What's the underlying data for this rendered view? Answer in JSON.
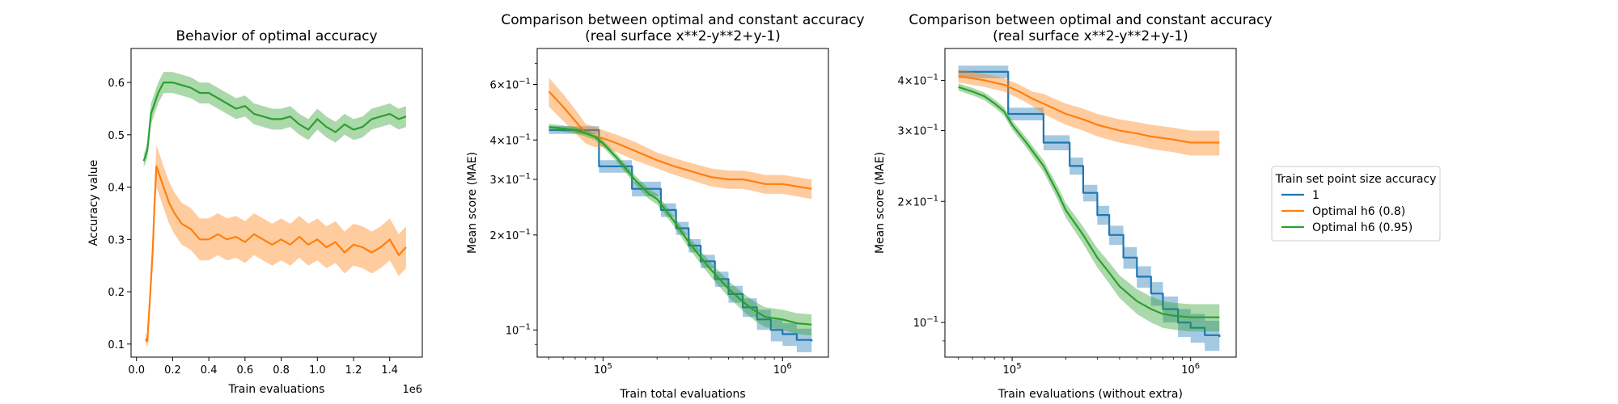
{
  "chart_data": [
    {
      "type": "line",
      "title": "Behavior of optimal accuracy",
      "xlabel": "Train evaluations",
      "ylabel": "Accuracy value",
      "x_offset_label": "1e6",
      "xlim": [
        -0.03,
        1.58
      ],
      "ylim": [
        0.075,
        0.665
      ],
      "xscale": "linear",
      "yscale": "linear",
      "xticks": [
        0.0,
        0.2,
        0.4,
        0.6,
        0.8,
        1.0,
        1.2,
        1.4
      ],
      "xtick_labels": [
        "0.0",
        "0.2",
        "0.4",
        "0.6",
        "0.8",
        "1.0",
        "1.2",
        "1.4"
      ],
      "yticks": [
        0.1,
        0.2,
        0.3,
        0.4,
        0.5,
        0.6
      ],
      "ytick_labels": [
        "0.1",
        "0.2",
        "0.3",
        "0.4",
        "0.5",
        "0.6"
      ],
      "series": [
        {
          "color": "#ff7f0e",
          "x": [
            0.05,
            0.06,
            0.075,
            0.09,
            0.1,
            0.11,
            0.13,
            0.15,
            0.18,
            0.21,
            0.25,
            0.3,
            0.35,
            0.4,
            0.45,
            0.5,
            0.55,
            0.6,
            0.65,
            0.7,
            0.75,
            0.8,
            0.85,
            0.9,
            0.95,
            1.0,
            1.05,
            1.1,
            1.15,
            1.2,
            1.25,
            1.3,
            1.35,
            1.4,
            1.45,
            1.49
          ],
          "y": [
            0.11,
            0.105,
            0.19,
            0.28,
            0.37,
            0.44,
            0.42,
            0.4,
            0.37,
            0.35,
            0.33,
            0.32,
            0.3,
            0.3,
            0.31,
            0.3,
            0.305,
            0.295,
            0.31,
            0.3,
            0.29,
            0.3,
            0.29,
            0.305,
            0.29,
            0.3,
            0.285,
            0.295,
            0.275,
            0.29,
            0.285,
            0.275,
            0.285,
            0.3,
            0.27,
            0.285
          ],
          "band": [
            0.01,
            0.01,
            0.02,
            0.03,
            0.035,
            0.04,
            0.04,
            0.04,
            0.04,
            0.04,
            0.04,
            0.04,
            0.04,
            0.04,
            0.04,
            0.04,
            0.04,
            0.04,
            0.04,
            0.04,
            0.04,
            0.04,
            0.04,
            0.04,
            0.04,
            0.04,
            0.04,
            0.04,
            0.04,
            0.04,
            0.04,
            0.04,
            0.04,
            0.04,
            0.04,
            0.04
          ]
        },
        {
          "color": "#2ca02c",
          "x": [
            0.04,
            0.06,
            0.08,
            0.1,
            0.12,
            0.15,
            0.2,
            0.25,
            0.3,
            0.35,
            0.4,
            0.45,
            0.5,
            0.55,
            0.6,
            0.65,
            0.7,
            0.75,
            0.8,
            0.85,
            0.9,
            0.95,
            1.0,
            1.05,
            1.1,
            1.15,
            1.2,
            1.25,
            1.3,
            1.35,
            1.4,
            1.45,
            1.49
          ],
          "y": [
            0.45,
            0.47,
            0.54,
            0.56,
            0.58,
            0.6,
            0.6,
            0.595,
            0.59,
            0.58,
            0.58,
            0.57,
            0.56,
            0.55,
            0.555,
            0.54,
            0.535,
            0.53,
            0.53,
            0.535,
            0.52,
            0.51,
            0.53,
            0.515,
            0.505,
            0.52,
            0.51,
            0.515,
            0.53,
            0.535,
            0.54,
            0.53,
            0.535
          ],
          "band": [
            0.012,
            0.015,
            0.02,
            0.02,
            0.02,
            0.02,
            0.02,
            0.02,
            0.02,
            0.02,
            0.02,
            0.02,
            0.02,
            0.02,
            0.02,
            0.02,
            0.02,
            0.02,
            0.02,
            0.02,
            0.02,
            0.02,
            0.02,
            0.02,
            0.02,
            0.02,
            0.02,
            0.02,
            0.02,
            0.02,
            0.02,
            0.02,
            0.02
          ]
        }
      ]
    },
    {
      "type": "line",
      "title": "Comparison between optimal and constant accuracy\n(real surface x**2-y**2+y-1)",
      "xlabel": "Train total evaluations",
      "ylabel": "Mean score (MAE)",
      "xlim": [
        43000,
        1800000
      ],
      "ylim": [
        0.082,
        0.78
      ],
      "xscale": "log",
      "yscale": "log",
      "xticks": [
        100000,
        1000000
      ],
      "xtick_labels": [
        "10^5",
        "10^6"
      ],
      "yticks": [
        0.1,
        0.2,
        0.3,
        0.4,
        0.6
      ],
      "ytick_labels": [
        "10^-1",
        "2×10^-1",
        "3×10^-1",
        "4×10^-1",
        "6×10^-1"
      ],
      "series": [
        {
          "color": "#1f77b4",
          "step": true,
          "x": [
            50000,
            75000,
            95000,
            120000,
            145000,
            175000,
            210000,
            255000,
            300000,
            350000,
            420000,
            500000,
            600000,
            720000,
            860000,
            1000000,
            1200000,
            1450000
          ],
          "y": [
            0.43,
            0.43,
            0.33,
            0.33,
            0.28,
            0.28,
            0.24,
            0.21,
            0.185,
            0.165,
            0.145,
            0.13,
            0.118,
            0.108,
            0.1,
            0.097,
            0.093,
            0.092
          ],
          "band": [
            0.012,
            0.012,
            0.015,
            0.015,
            0.015,
            0.015,
            0.012,
            0.01,
            0.009,
            0.008,
            0.008,
            0.008,
            0.008,
            0.008,
            0.008,
            0.008,
            0.008,
            0.008
          ]
        },
        {
          "color": "#ff7f0e",
          "x": [
            50000,
            60000,
            70000,
            80000,
            90000,
            100000,
            120000,
            150000,
            200000,
            250000,
            300000,
            400000,
            500000,
            600000,
            700000,
            800000,
            900000,
            1000000,
            1200000,
            1450000
          ],
          "y": [
            0.57,
            0.51,
            0.46,
            0.42,
            0.41,
            0.405,
            0.39,
            0.37,
            0.345,
            0.33,
            0.32,
            0.305,
            0.3,
            0.3,
            0.295,
            0.29,
            0.29,
            0.29,
            0.285,
            0.28
          ],
          "band": [
            0.06,
            0.05,
            0.04,
            0.03,
            0.03,
            0.025,
            0.025,
            0.025,
            0.02,
            0.02,
            0.02,
            0.02,
            0.02,
            0.02,
            0.02,
            0.02,
            0.02,
            0.02,
            0.02,
            0.02
          ]
        },
        {
          "color": "#2ca02c",
          "x": [
            50000,
            60000,
            70000,
            80000,
            90000,
            100000,
            120000,
            150000,
            180000,
            200000,
            250000,
            300000,
            350000,
            400000,
            500000,
            600000,
            700000,
            800000,
            1000000,
            1200000,
            1450000
          ],
          "y": [
            0.44,
            0.435,
            0.43,
            0.42,
            0.41,
            0.39,
            0.35,
            0.3,
            0.27,
            0.26,
            0.22,
            0.19,
            0.17,
            0.155,
            0.135,
            0.123,
            0.115,
            0.11,
            0.108,
            0.105,
            0.104
          ],
          "band": [
            0.01,
            0.01,
            0.01,
            0.01,
            0.01,
            0.01,
            0.01,
            0.01,
            0.01,
            0.01,
            0.008,
            0.008,
            0.008,
            0.008,
            0.008,
            0.008,
            0.008,
            0.008,
            0.008,
            0.008,
            0.008
          ]
        }
      ]
    },
    {
      "type": "line",
      "title": "Comparison between optimal and constant accuracy\n(real surface x**2-y**2+y-1)",
      "xlabel": "Train evaluations (without extra)",
      "ylabel": "Mean score (MAE)",
      "xlim": [
        42000,
        1800000
      ],
      "ylim": [
        0.082,
        0.48
      ],
      "xscale": "log",
      "yscale": "log",
      "xticks": [
        100000,
        1000000
      ],
      "xtick_labels": [
        "10^5",
        "10^6"
      ],
      "yticks": [
        0.1,
        0.2,
        0.3,
        0.4
      ],
      "ytick_labels": [
        "10^-1",
        "2×10^-1",
        "3×10^-1",
        "4×10^-1"
      ],
      "series": [
        {
          "color": "#1f77b4",
          "step": true,
          "x": [
            50000,
            75000,
            95000,
            125000,
            150000,
            175000,
            210000,
            250000,
            300000,
            350000,
            420000,
            500000,
            600000,
            700000,
            850000,
            1000000,
            1200000,
            1450000
          ],
          "y": [
            0.42,
            0.42,
            0.33,
            0.33,
            0.28,
            0.28,
            0.245,
            0.21,
            0.185,
            0.165,
            0.145,
            0.13,
            0.118,
            0.108,
            0.1,
            0.097,
            0.093,
            0.092
          ],
          "band": [
            0.015,
            0.015,
            0.012,
            0.012,
            0.012,
            0.012,
            0.012,
            0.01,
            0.01,
            0.009,
            0.009,
            0.008,
            0.008,
            0.008,
            0.008,
            0.008,
            0.008,
            0.008
          ]
        },
        {
          "color": "#ff7f0e",
          "x": [
            50000,
            70000,
            90000,
            110000,
            130000,
            150000,
            200000,
            250000,
            300000,
            400000,
            500000,
            600000,
            800000,
            1000000,
            1200000,
            1450000
          ],
          "y": [
            0.41,
            0.4,
            0.39,
            0.375,
            0.36,
            0.35,
            0.33,
            0.32,
            0.31,
            0.3,
            0.295,
            0.29,
            0.285,
            0.28,
            0.28,
            0.28
          ],
          "band": [
            0.015,
            0.015,
            0.015,
            0.015,
            0.015,
            0.02,
            0.02,
            0.02,
            0.02,
            0.02,
            0.02,
            0.02,
            0.02,
            0.02,
            0.02,
            0.02
          ]
        },
        {
          "color": "#2ca02c",
          "x": [
            50000,
            60000,
            70000,
            80000,
            90000,
            100000,
            120000,
            150000,
            180000,
            200000,
            250000,
            300000,
            350000,
            400000,
            500000,
            600000,
            700000,
            800000,
            1000000,
            1200000,
            1450000
          ],
          "y": [
            0.385,
            0.375,
            0.365,
            0.35,
            0.335,
            0.31,
            0.28,
            0.245,
            0.21,
            0.19,
            0.165,
            0.145,
            0.133,
            0.123,
            0.113,
            0.108,
            0.105,
            0.104,
            0.103,
            0.103,
            0.103
          ],
          "band": [
            0.008,
            0.008,
            0.008,
            0.008,
            0.008,
            0.008,
            0.008,
            0.008,
            0.008,
            0.008,
            0.008,
            0.008,
            0.008,
            0.008,
            0.008,
            0.008,
            0.008,
            0.008,
            0.008,
            0.008,
            0.008
          ]
        }
      ]
    }
  ],
  "legend": {
    "title": "Train set point size accuracy",
    "placement": "right",
    "entries": [
      {
        "label": "1",
        "color": "#1f77b4"
      },
      {
        "label": "Optimal h6 (0.8)",
        "color": "#ff7f0e"
      },
      {
        "label": "Optimal h6 (0.95)",
        "color": "#2ca02c"
      }
    ]
  }
}
